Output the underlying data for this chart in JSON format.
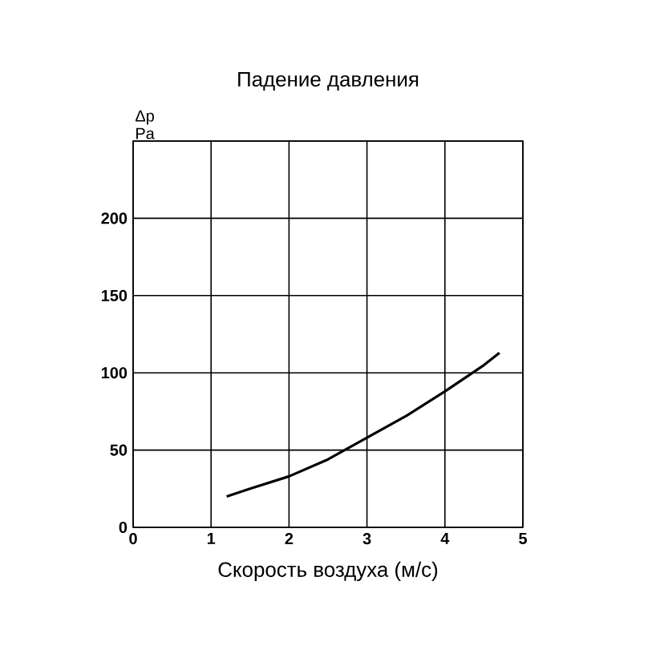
{
  "chart_data": {
    "type": "line",
    "title": "Падение давления",
    "xlabel": "Скорость воздуха (м/с)",
    "ylabel": "Δp Pa",
    "xlim": [
      0,
      5
    ],
    "xticks": [
      0,
      1,
      2,
      3,
      4,
      5
    ],
    "ylim": [
      0,
      250
    ],
    "yticks": [
      0,
      50,
      100,
      150,
      200,
      {
        "value": 250,
        "label": null
      }
    ],
    "grid": true,
    "series": [
      {
        "color": "#000000",
        "x": [
          1.2,
          1.5,
          2,
          2.5,
          3,
          3.5,
          4,
          4.5,
          4.7
        ],
        "values": [
          20,
          25,
          33,
          44,
          58,
          72,
          88,
          105,
          113
        ]
      }
    ]
  }
}
